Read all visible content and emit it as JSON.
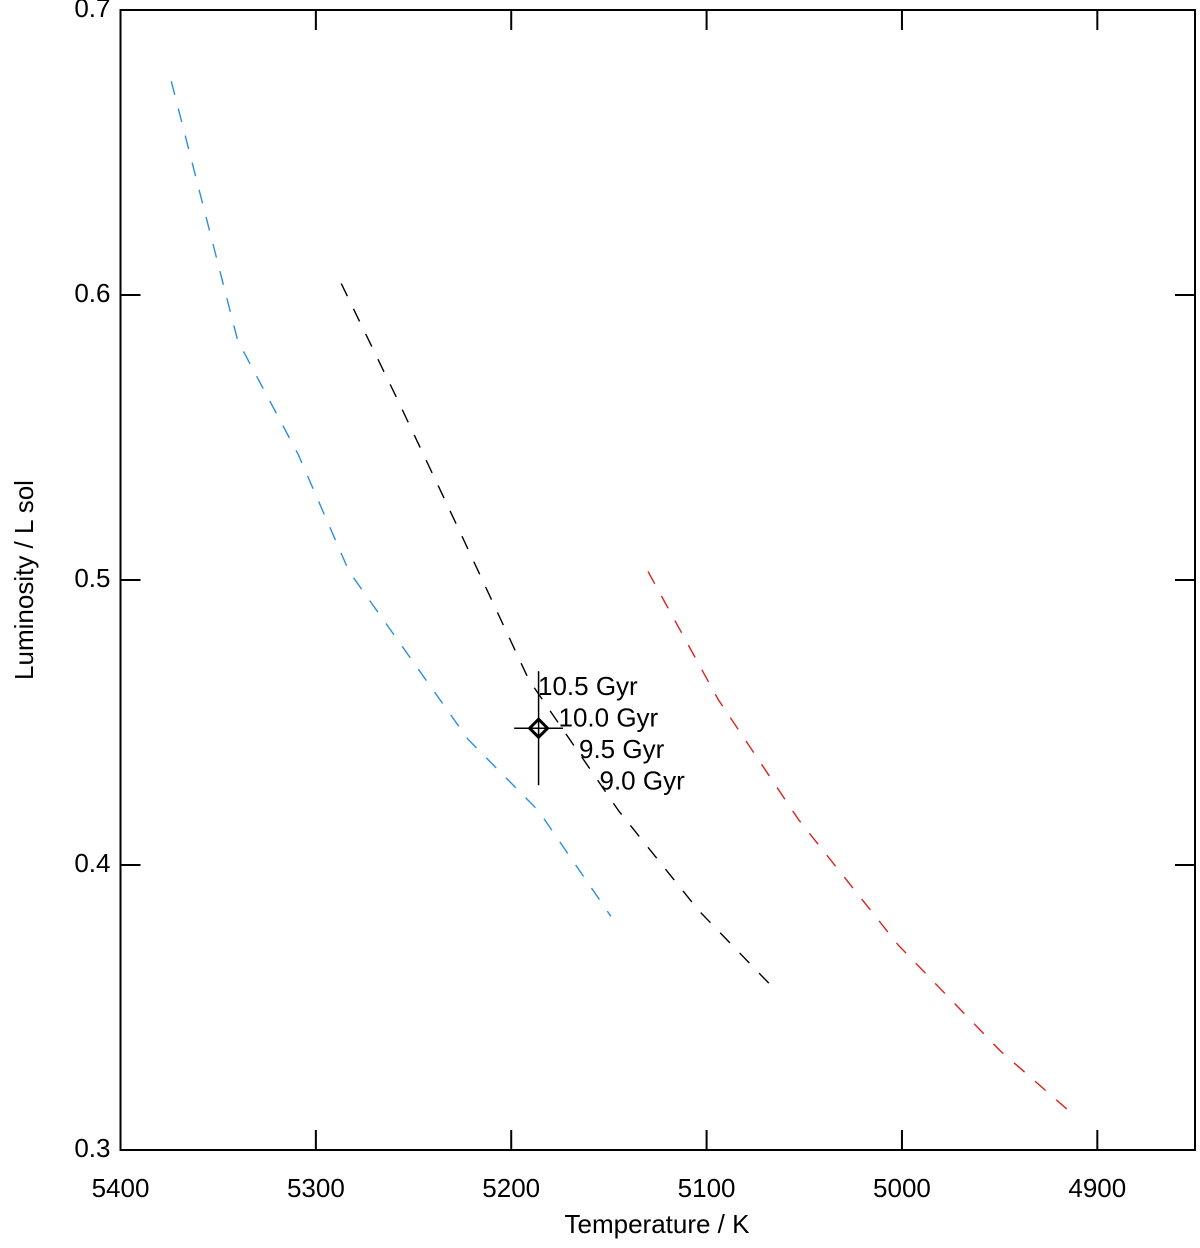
{
  "chart_data": {
    "type": "line",
    "xlabel": "Temperature / K",
    "ylabel": "Luminosity / L sol",
    "xlim": [
      5400,
      4850
    ],
    "ylim": [
      0.3,
      0.7
    ],
    "xticks": [
      5400,
      5300,
      5200,
      5100,
      5000,
      4900
    ],
    "yticks": [
      0.3,
      0.4,
      0.5,
      0.6,
      0.7
    ],
    "series": [
      {
        "color": "#2a8fe0",
        "style": "dashed",
        "x": [
          5374,
          5340,
          5309,
          5283,
          5222,
          5186,
          5149
        ],
        "y": [
          0.675,
          0.584,
          0.544,
          0.503,
          0.444,
          0.419,
          0.382
        ]
      },
      {
        "color": "#000000",
        "style": "dashed",
        "x": [
          5287,
          5258,
          5227,
          5191,
          5145,
          5104,
          5066
        ],
        "y": [
          0.604,
          0.563,
          0.518,
          0.465,
          0.419,
          0.384,
          0.357
        ]
      },
      {
        "color": "#e0201c",
        "style": "dashed",
        "x": [
          5130,
          5094,
          5053,
          5002,
          4950,
          4915
        ],
        "y": [
          0.503,
          0.458,
          0.416,
          0.372,
          0.335,
          0.314
        ]
      }
    ],
    "points": [
      {
        "x": 5186,
        "y": 0.448,
        "xerr": 12.5,
        "yerr": 0.02,
        "color": "#000000",
        "marker": "diamond"
      }
    ],
    "annotations": [
      "10.5 Gyr",
      "10.0 Gyr",
      "9.5 Gyr",
      "9.0 Gyr"
    ]
  }
}
